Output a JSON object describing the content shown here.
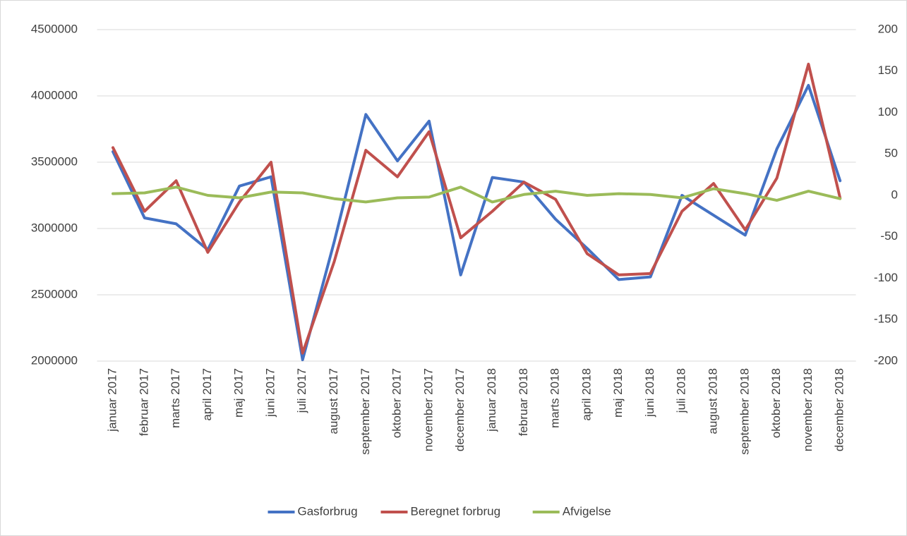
{
  "chart_data": {
    "type": "line",
    "categories": [
      "januar 2017",
      "februar 2017",
      "marts 2017",
      "april 2017",
      "maj 2017",
      "juni 2017",
      "juli 2017",
      "august 2017",
      "september 2017",
      "oktober 2017",
      "november 2017",
      "december 2017",
      "januar 2018",
      "februar 2018",
      "marts 2018",
      "april 2018",
      "maj 2018",
      "juni 2018",
      "juli 2018",
      "august 2018",
      "september 2018",
      "oktober 2018",
      "november 2018",
      "december 2018"
    ],
    "series": [
      {
        "name": "Gasforbrug",
        "color": "#4472c4",
        "values": [
          3580000,
          3080000,
          3035000,
          2840000,
          3320000,
          3390000,
          2010000,
          2900000,
          3860000,
          3510000,
          3810000,
          2650000,
          3385000,
          3350000,
          3070000,
          2850000,
          2615000,
          2635000,
          3250000,
          3100000,
          2950000,
          3600000,
          4080000,
          3360000
        ]
      },
      {
        "name": "Beregnet forbrug",
        "color": "#c0504d",
        "values": [
          3610000,
          3130000,
          3360000,
          2820000,
          3200000,
          3500000,
          2060000,
          2750000,
          3590000,
          3390000,
          3730000,
          2930000,
          3130000,
          3350000,
          3220000,
          2810000,
          2650000,
          2660000,
          3130000,
          3340000,
          2990000,
          3380000,
          4240000,
          3230000
        ]
      },
      {
        "name": "Afvigelse",
        "color": "#9bbb59",
        "axis": "y2",
        "values": [
          2,
          3,
          10,
          0,
          -3,
          4,
          3,
          -4,
          -8,
          -3,
          -2,
          10,
          -8,
          1,
          5,
          0,
          2,
          1,
          -3,
          8,
          2,
          -6,
          5,
          -4
        ]
      }
    ],
    "ylim": [
      2000000,
      4500000
    ],
    "yticks": [
      2000000,
      2500000,
      3000000,
      3500000,
      4000000,
      4500000
    ],
    "y2lim": [
      -200,
      200
    ],
    "y2ticks": [
      -200,
      -150,
      -100,
      -50,
      0,
      50,
      100,
      150,
      200
    ],
    "grid": true,
    "legend": "bottom"
  }
}
